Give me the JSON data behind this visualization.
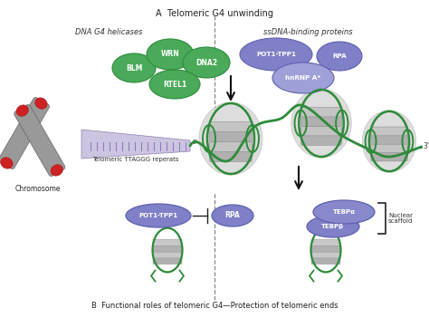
{
  "title_A": "A  Telomeric G4 unwinding",
  "title_B": "B  Functional roles of telomeric G4—Protection of telomeric ends",
  "dna_helicases_label": "DNA G4 helicases",
  "ssdna_label": "ssDNA-binding proteins",
  "chromosome_label": "Chromosome",
  "telomere_label": "Telomeric TTAGGG reperats",
  "bottom_pot1_label": "POT1-TPP1",
  "bottom_rpa_label": "RPA",
  "tebpa_label": "TEBPα",
  "tebpb_label": "TEBPβ",
  "nuclear_scaffold_label": "Nuclear\nscaffold",
  "bg_color": "#ffffff",
  "green_color": "#2e8b3a",
  "green_fill": "#4aaa5a",
  "green_fill2": "#66bb77",
  "purple_dark": "#6060b0",
  "purple_mid": "#8080c8",
  "purple_light": "#a0a0d8",
  "purple_lightest": "#c0c0e8",
  "dashed_color": "#888888",
  "arrow_color": "#111111",
  "chrom_dark": "#555555",
  "chrom_red": "#cc2222",
  "chrom_grey": "#888888"
}
